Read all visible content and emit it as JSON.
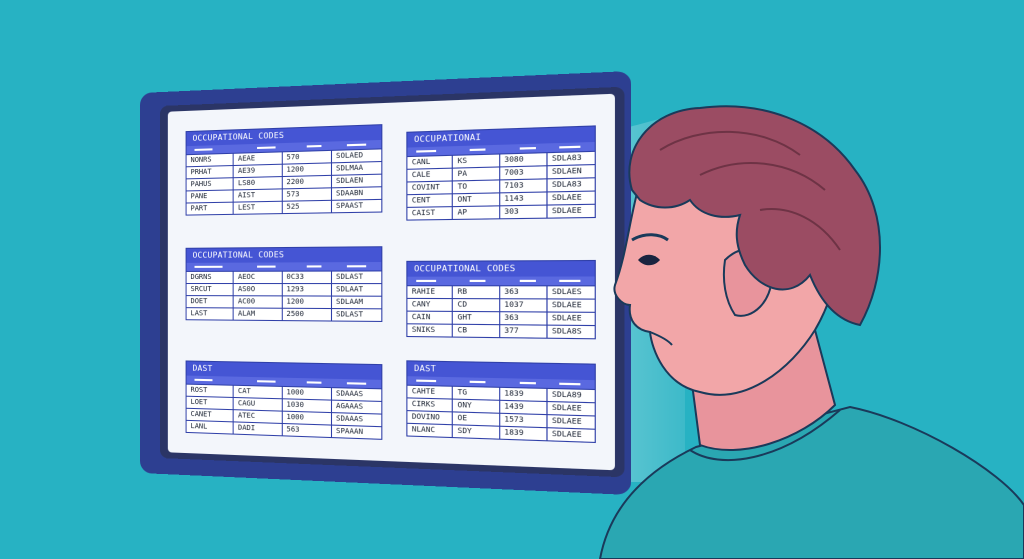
{
  "colors": {
    "background": "#27b2c3",
    "monitor_frame": "#2d3f91",
    "panel_header": "#4555d4",
    "hair": "#9b4c63",
    "skin": "#f2a6a8",
    "shirt": "#2aa7b2"
  },
  "panels": [
    {
      "title": "OCCUPATIONAL CODES",
      "rows": [
        [
          "NONRS",
          "AEAE",
          "570",
          "SOLAED"
        ],
        [
          "PRHAT",
          "AE39",
          "1200",
          "SDLMAA"
        ],
        [
          "PAHUS",
          "LS80",
          "2200",
          "SDLAEN"
        ],
        [
          "PANE",
          "AIST",
          "573",
          "SDAABN"
        ],
        [
          "PART",
          "LEST",
          "525",
          "SPAAST"
        ]
      ]
    },
    {
      "title": "OCCUPATIONAL CODES",
      "rows": [
        [
          "DGRNS",
          "AEOC",
          "0C33",
          "SDLAST"
        ],
        [
          "SRCUT",
          "AS0O",
          "1293",
          "SDLAAT"
        ],
        [
          "DOET",
          "AC00",
          "1200",
          "SDLAAM"
        ],
        [
          "LAST",
          "ALAM",
          "2500",
          "SDLAST"
        ]
      ]
    },
    {
      "title": "DAST",
      "rows": [
        [
          "ROST",
          "CAT",
          "1000",
          "SDAAAS"
        ],
        [
          "LOET",
          "CAGU",
          "1030",
          "AGAAAS"
        ],
        [
          "CANET",
          "ATEC",
          "1000",
          "SDAAAS"
        ],
        [
          "LANL",
          "DADI",
          "563",
          "SPAAAN"
        ]
      ]
    },
    {
      "title": "OCCUPATIONAI",
      "rows": [
        [
          "CANL",
          "KS",
          "3080",
          "SDLA83"
        ],
        [
          "CALE",
          "PA",
          "7003",
          "SDLAEN"
        ],
        [
          "COVINT",
          "TO",
          "7103",
          "SDLA83"
        ],
        [
          "CENT",
          "ONT",
          "1143",
          "SDLAEE"
        ],
        [
          "CAIST",
          "AP",
          "303",
          "SDLAEE"
        ]
      ]
    },
    {
      "title": "OCCUPATIONAL CODES",
      "rows": [
        [
          "RAHIE",
          "RB",
          "363",
          "SDLAES"
        ],
        [
          "CANY",
          "CD",
          "1037",
          "SDLAEE"
        ],
        [
          "CAIN",
          "GHT",
          "363",
          "SDLAEE"
        ],
        [
          "SNIKS",
          "CB",
          "377",
          "SDLA8S"
        ]
      ]
    },
    {
      "title": "DAST",
      "rows": [
        [
          "CAHTE",
          "TG",
          "1839",
          "SDLA89"
        ],
        [
          "CIRKS",
          "ONY",
          "1439",
          "SDLAEE"
        ],
        [
          "DOVINO",
          "OE",
          "1573",
          "SDLAEE"
        ],
        [
          "NLANC",
          "SDY",
          "1839",
          "SDLAEE"
        ]
      ]
    }
  ]
}
